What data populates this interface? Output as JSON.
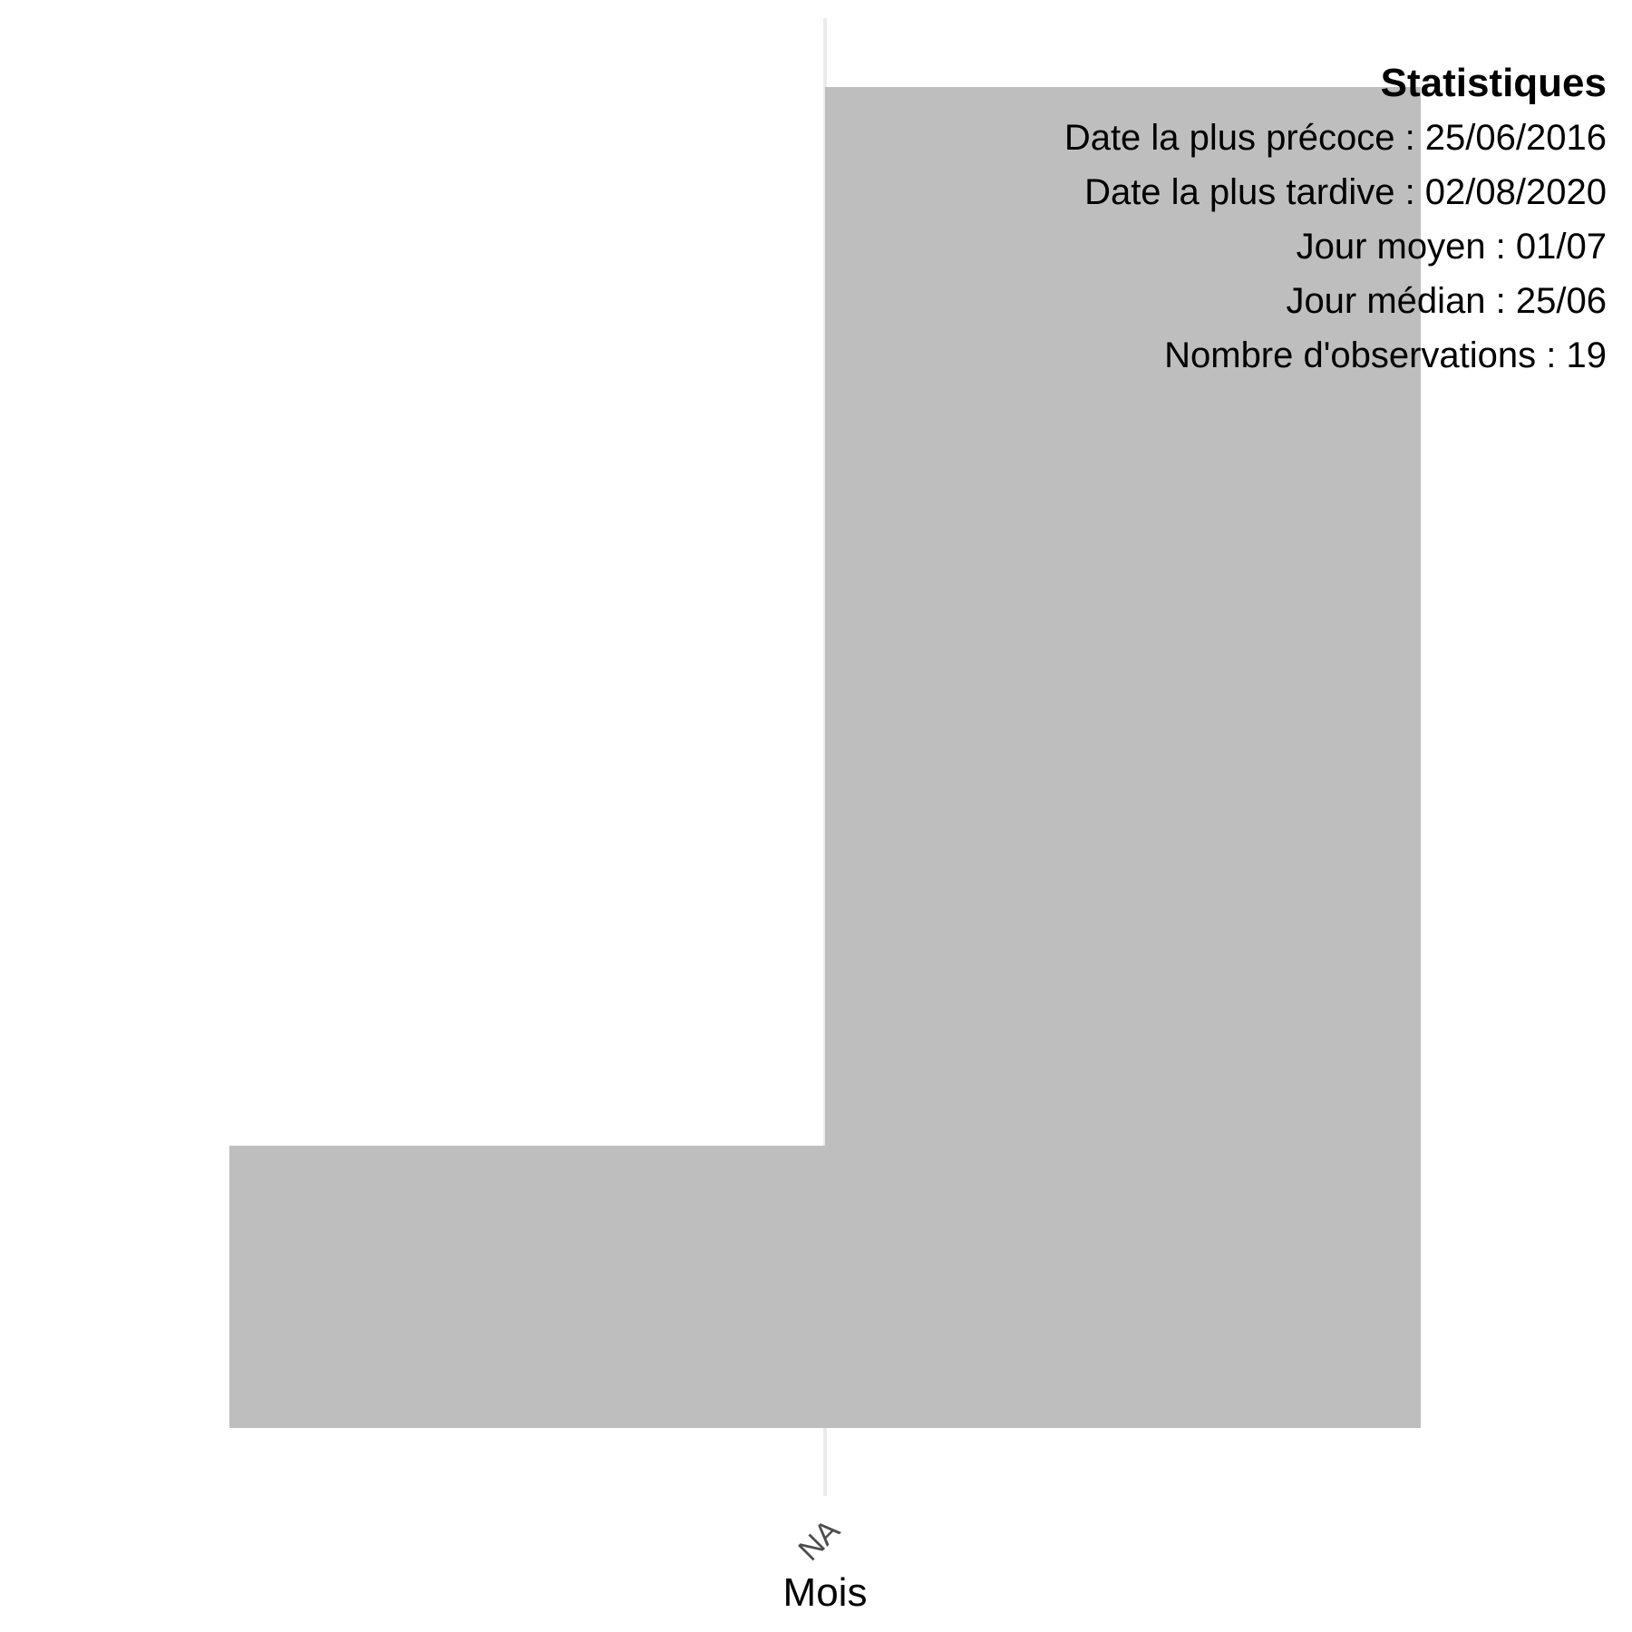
{
  "chart_data": {
    "type": "bar",
    "categories": [
      "NA"
    ],
    "series": [
      {
        "values": [
          19
        ]
      }
    ],
    "bins": [
      {
        "x_start": -1,
        "x_end": 0,
        "count": 4
      },
      {
        "x_start": 0,
        "x_end": 1,
        "count": 19
      }
    ],
    "xlabel": "Mois",
    "ylabel": "",
    "ylim": [
      0,
      20
    ],
    "bar_color": "#bebebe",
    "grid": "vertical-major-only",
    "x_tick_label": "NA"
  },
  "stats": {
    "title": "Statistiques",
    "lines": [
      "Date la plus précoce : 25/06/2016",
      "Date la plus tardive : 02/08/2020",
      "Jour moyen : 01/07",
      "Jour médian : 25/06",
      "Nombre d'observations : 19"
    ]
  }
}
